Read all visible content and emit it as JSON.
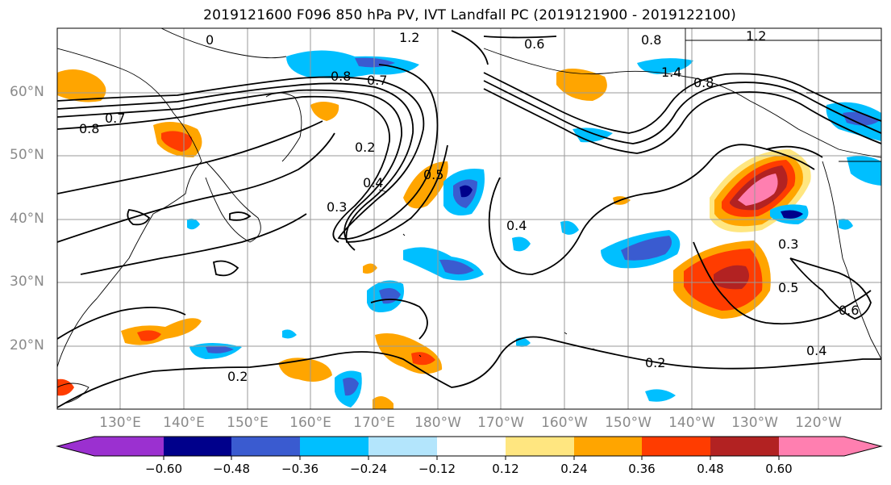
{
  "title": "2019121600 F096 850 hPa PV, IVT Landfall PC (2019121900 - 2019122100)",
  "map": {
    "lat_labels": [
      "60°N",
      "50°N",
      "40°N",
      "30°N",
      "20°N"
    ],
    "lon_labels": [
      "130°E",
      "140°E",
      "150°E",
      "160°E",
      "170°E",
      "180°W",
      "170°W",
      "160°W",
      "150°W",
      "140°W",
      "130°W",
      "120°W"
    ],
    "contour_labels": [
      "1.2",
      "0.6",
      "0.8",
      "1.4",
      "0.8",
      "1.2",
      "0.8",
      "0.7",
      "0.8",
      "0.7",
      "0.2",
      "0.4",
      "0.3",
      "0.5",
      "0.4",
      "0.3",
      "0.5",
      "0.6",
      "0.4",
      "0.2",
      "0.2",
      "0"
    ],
    "fill_colors": {
      "neg_060": "#9b30d0",
      "neg_048": "#00008b",
      "neg_036": "#3a5bd0",
      "neg_024": "#00bfff",
      "neg_012": "#b3e5fc",
      "pos_012": "#ffe680",
      "pos_024": "#ffa500",
      "pos_036": "#ff3c00",
      "pos_048": "#b22222",
      "pos_060": "#ff7fb0"
    }
  },
  "colorbar": {
    "colors": [
      "#9b30d0",
      "#00008b",
      "#3a5bd0",
      "#00bfff",
      "#b3e5fc",
      "#ffffff",
      "#ffe680",
      "#ffa500",
      "#ff3c00",
      "#b22222",
      "#ff7fb0"
    ],
    "tick_labels": [
      "−0.60",
      "−0.48",
      "−0.36",
      "−0.24",
      "−0.12",
      "0.12",
      "0.24",
      "0.36",
      "0.48",
      "0.60"
    ]
  }
}
